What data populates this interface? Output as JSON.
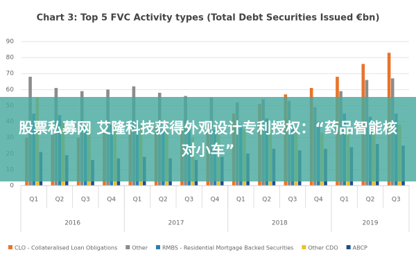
{
  "chart_data": {
    "type": "bar",
    "title": "Chart 3: Top 5 FVC Activity types (Total Debt Securities Issued €bn)",
    "categories": [
      "Q1",
      "Q2",
      "Q3",
      "Q4",
      "Q1",
      "Q2",
      "Q3",
      "Q4",
      "Q1",
      "Q2",
      "Q3",
      "Q4",
      "Q1",
      "Q2",
      "Q3"
    ],
    "groups": [
      "2016",
      "2017",
      "2018",
      "2019"
    ],
    "series": [
      {
        "name": "CLO - Collateralised Loan Obligations",
        "color": "#e8742a",
        "values": [
          30,
          32,
          30,
          33,
          35,
          37,
          36,
          38,
          45,
          51,
          57,
          61,
          68,
          76,
          83
        ]
      },
      {
        "name": "Other",
        "color": "#8c8c8c",
        "values": [
          68,
          61,
          59,
          60,
          62,
          58,
          56,
          55,
          52,
          54,
          53,
          49,
          59,
          66,
          67
        ]
      },
      {
        "name": "RMBS - Residential Mortgage Backed Securities",
        "color": "#2b7fb0",
        "values": [
          45,
          44,
          38,
          38,
          40,
          36,
          35,
          35,
          38,
          42,
          38,
          40,
          45,
          43,
          45
        ]
      },
      {
        "name": "Other CDO",
        "color": "#e9c22c",
        "values": [
          55,
          40,
          37,
          35,
          38,
          35,
          30,
          33,
          35,
          36,
          35,
          33,
          36,
          37,
          38
        ]
      },
      {
        "name": "ABCP",
        "color": "#1f4e8c",
        "values": [
          21,
          19,
          16,
          17,
          18,
          17,
          16,
          18,
          20,
          23,
          22,
          23,
          24,
          26,
          25
        ]
      }
    ],
    "ylim": [
      0,
      90
    ],
    "yticks": [
      0,
      10,
      20,
      30,
      40,
      50,
      60,
      70,
      80,
      90
    ],
    "grid": true,
    "legend": "bottom"
  },
  "banner": {
    "text": "股票私募网 艾隆科技获得外观设计专利授权：“药品智能核对小车”"
  }
}
